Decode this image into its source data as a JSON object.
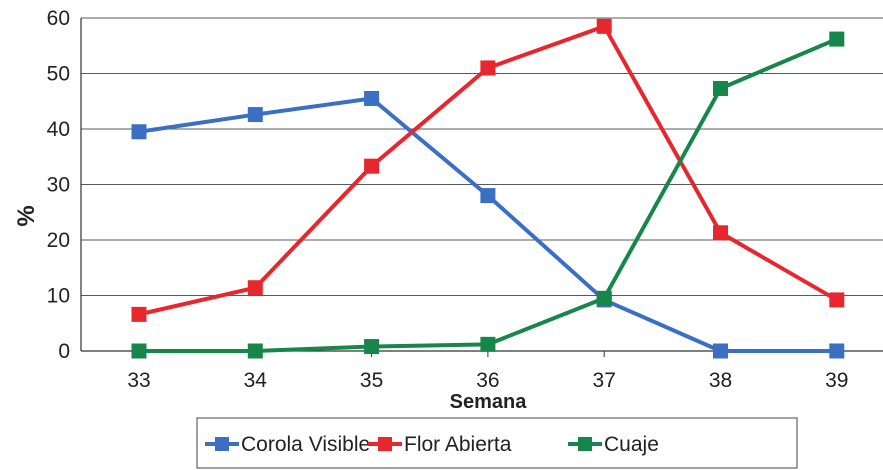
{
  "chart_data": {
    "type": "line",
    "xlabel": "Semana",
    "ylabel": "%",
    "x": [
      33,
      34,
      35,
      36,
      37,
      38,
      39
    ],
    "ylim": [
      0,
      60
    ],
    "yticks": [
      0,
      10,
      20,
      30,
      40,
      50,
      60
    ],
    "grid": true,
    "legend": "bottom",
    "series": [
      {
        "name": "Corola Visible",
        "color": "#3A6FC4",
        "values": [
          39.5,
          42.6,
          45.5,
          28.0,
          9.2,
          0,
          0
        ]
      },
      {
        "name": "Flor Abierta",
        "color": "#E8262E",
        "values": [
          6.6,
          11.4,
          33.3,
          51.0,
          58.5,
          21.3,
          9.2
        ]
      },
      {
        "name": "Cuaje",
        "color": "#17864A",
        "values": [
          0,
          0,
          0.8,
          1.2,
          9.5,
          47.3,
          56.2
        ]
      }
    ]
  }
}
